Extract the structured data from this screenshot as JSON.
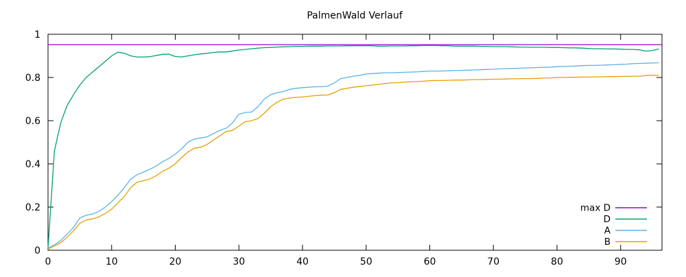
{
  "figure": {
    "background": "#ffffff",
    "border_color": "#000000",
    "text_color": "#000000"
  },
  "chart_data": {
    "type": "line",
    "title": "PalmenWald Verlauf",
    "xlabel": "",
    "ylabel": "",
    "xlim": [
      0,
      96.5
    ],
    "ylim": [
      0,
      1
    ],
    "x_ticks": [
      0,
      10,
      20,
      30,
      40,
      50,
      60,
      70,
      80,
      90
    ],
    "y_ticks": [
      0,
      0.2,
      0.4,
      0.6,
      0.8,
      1
    ],
    "grid": false,
    "legend_position": "bottom-right-inside",
    "series": [
      {
        "name": "max D",
        "color": "#9400d3",
        "x": [
          0,
          96.5
        ],
        "values": [
          0.952,
          0.952
        ]
      },
      {
        "name": "D",
        "color": "#009e73",
        "x_start": 0,
        "x_step": 1,
        "values": [
          0.01,
          0.46,
          0.59,
          0.67,
          0.72,
          0.765,
          0.8,
          0.825,
          0.85,
          0.875,
          0.9,
          0.917,
          0.912,
          0.9,
          0.895,
          0.895,
          0.896,
          0.902,
          0.907,
          0.908,
          0.897,
          0.895,
          0.9,
          0.905,
          0.909,
          0.912,
          0.916,
          0.918,
          0.918,
          0.923,
          0.927,
          0.93,
          0.933,
          0.936,
          0.938,
          0.939,
          0.941,
          0.942,
          0.943,
          0.944,
          0.944,
          0.945,
          0.945,
          0.945,
          0.946,
          0.946,
          0.946,
          0.947,
          0.947,
          0.947,
          0.947,
          0.947,
          0.945,
          0.945,
          0.946,
          0.946,
          0.946,
          0.947,
          0.947,
          0.948,
          0.948,
          0.948,
          0.947,
          0.947,
          0.945,
          0.945,
          0.945,
          0.945,
          0.944,
          0.944,
          0.943,
          0.943,
          0.943,
          0.942,
          0.941,
          0.941,
          0.94,
          0.94,
          0.94,
          0.939,
          0.939,
          0.938,
          0.937,
          0.937,
          0.936,
          0.934,
          0.933,
          0.933,
          0.932,
          0.932,
          0.931,
          0.93,
          0.93,
          0.928,
          0.922,
          0.925,
          0.932
        ]
      },
      {
        "name": "A",
        "color": "#56b4e9",
        "x_start": 0,
        "x_step": 1,
        "values": [
          0.01,
          0.025,
          0.045,
          0.075,
          0.105,
          0.15,
          0.162,
          0.168,
          0.18,
          0.2,
          0.225,
          0.255,
          0.29,
          0.33,
          0.35,
          0.362,
          0.375,
          0.39,
          0.41,
          0.425,
          0.445,
          0.47,
          0.5,
          0.515,
          0.52,
          0.525,
          0.54,
          0.555,
          0.565,
          0.59,
          0.63,
          0.638,
          0.64,
          0.665,
          0.7,
          0.72,
          0.73,
          0.735,
          0.745,
          0.75,
          0.753,
          0.755,
          0.757,
          0.757,
          0.76,
          0.775,
          0.795,
          0.8,
          0.806,
          0.81,
          0.816,
          0.818,
          0.82,
          0.822,
          0.822,
          0.823,
          0.824,
          0.825,
          0.826,
          0.828,
          0.83,
          0.83,
          0.83,
          0.831,
          0.832,
          0.833,
          0.834,
          0.835,
          0.836,
          0.837,
          0.838,
          0.84,
          0.841,
          0.842,
          0.843,
          0.844,
          0.845,
          0.846,
          0.847,
          0.848,
          0.85,
          0.851,
          0.852,
          0.853,
          0.855,
          0.856,
          0.856,
          0.857,
          0.858,
          0.859,
          0.861,
          0.862,
          0.864,
          0.865,
          0.866,
          0.867,
          0.868
        ]
      },
      {
        "name": "B",
        "color": "#e69f00",
        "x_start": 0,
        "x_step": 1,
        "values": [
          0.005,
          0.02,
          0.035,
          0.06,
          0.09,
          0.125,
          0.14,
          0.145,
          0.155,
          0.17,
          0.19,
          0.22,
          0.25,
          0.29,
          0.315,
          0.322,
          0.33,
          0.345,
          0.365,
          0.38,
          0.4,
          0.43,
          0.455,
          0.472,
          0.477,
          0.49,
          0.51,
          0.53,
          0.55,
          0.555,
          0.575,
          0.595,
          0.6,
          0.61,
          0.635,
          0.665,
          0.685,
          0.7,
          0.705,
          0.708,
          0.71,
          0.713,
          0.716,
          0.718,
          0.719,
          0.73,
          0.745,
          0.75,
          0.755,
          0.758,
          0.762,
          0.765,
          0.768,
          0.772,
          0.775,
          0.776,
          0.778,
          0.78,
          0.781,
          0.783,
          0.785,
          0.786,
          0.786,
          0.787,
          0.788,
          0.788,
          0.789,
          0.79,
          0.79,
          0.791,
          0.792,
          0.792,
          0.793,
          0.794,
          0.794,
          0.795,
          0.795,
          0.796,
          0.797,
          0.798,
          0.8,
          0.8,
          0.801,
          0.801,
          0.802,
          0.802,
          0.803,
          0.803,
          0.804,
          0.804,
          0.805,
          0.805,
          0.806,
          0.806,
          0.809,
          0.81,
          0.81
        ]
      }
    ]
  }
}
